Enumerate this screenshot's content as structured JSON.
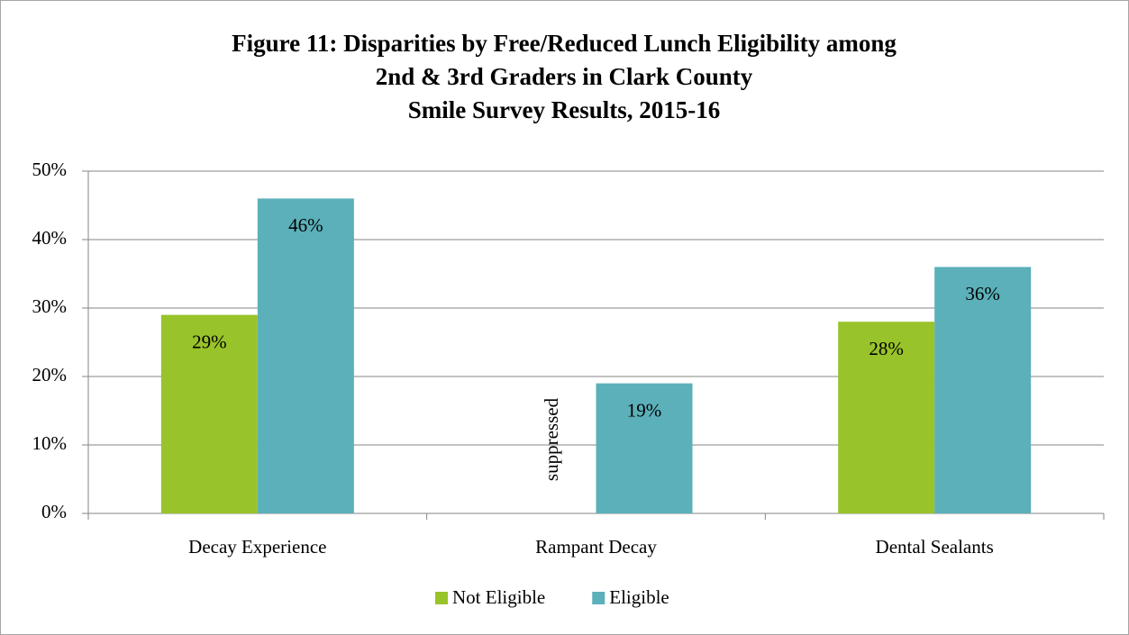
{
  "chart_data": {
    "type": "bar",
    "title": [
      "Figure 11: Disparities by Free/Reduced Lunch Eligibility among",
      "2nd & 3rd Graders in Clark County",
      "Smile Survey Results, 2015-16"
    ],
    "categories": [
      "Decay Experience",
      "Rampant Decay",
      "Dental Sealants"
    ],
    "series": [
      {
        "name": "Not Eligible",
        "color": "#99c32a",
        "values": [
          29,
          null,
          28
        ],
        "value_labels": [
          "29%",
          "suppressed",
          "28%"
        ]
      },
      {
        "name": "Eligible",
        "color": "#5bb0b9",
        "values": [
          46,
          19,
          36
        ],
        "value_labels": [
          "46%",
          "19%",
          "36%"
        ]
      }
    ],
    "ylim": [
      0,
      50
    ],
    "yticks": [
      {
        "value": 0,
        "label": "0%"
      },
      {
        "value": 10,
        "label": "10%"
      },
      {
        "value": 20,
        "label": "20%"
      },
      {
        "value": 30,
        "label": "30%"
      },
      {
        "value": 40,
        "label": "40%"
      },
      {
        "value": 50,
        "label": "50%"
      }
    ],
    "grid": true,
    "legend": "bottom"
  }
}
